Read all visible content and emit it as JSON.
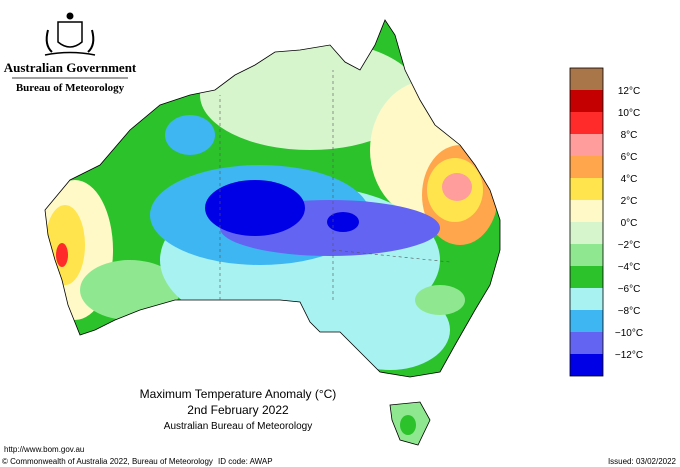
{
  "header": {
    "agency": "Australian Government",
    "bureau": "Bureau of Meteorology"
  },
  "legend": {
    "labels": [
      null,
      "12°C",
      "10°C",
      "8°C",
      "6°C",
      "4°C",
      "2°C",
      "0°C",
      "−2°C",
      "−4°C",
      "−6°C",
      "−8°C",
      "−10°C",
      "−12°C"
    ],
    "colors": [
      "#a9764a",
      "#c40000",
      "#ff2a2a",
      "#ff9c9c",
      "#ffa64d",
      "#ffe44d",
      "#fff9c8",
      "#d6f5cc",
      "#8fe88f",
      "#2cc22c",
      "#a8f2f2",
      "#3db6f2",
      "#6464f2",
      "#0000e6"
    ]
  },
  "title": {
    "line1": "Maximum Temperature Anomaly (°C)",
    "line2": "2nd February 2022",
    "line3": "Australian Bureau of Meteorology"
  },
  "footer": {
    "url": "http://www.bom.gov.au",
    "copyright": "© Commonwealth of Australia 2022, Bureau of Meteorology",
    "id_code": "ID code: AWAP",
    "issued": "Issued: 03/02/2022"
  }
}
